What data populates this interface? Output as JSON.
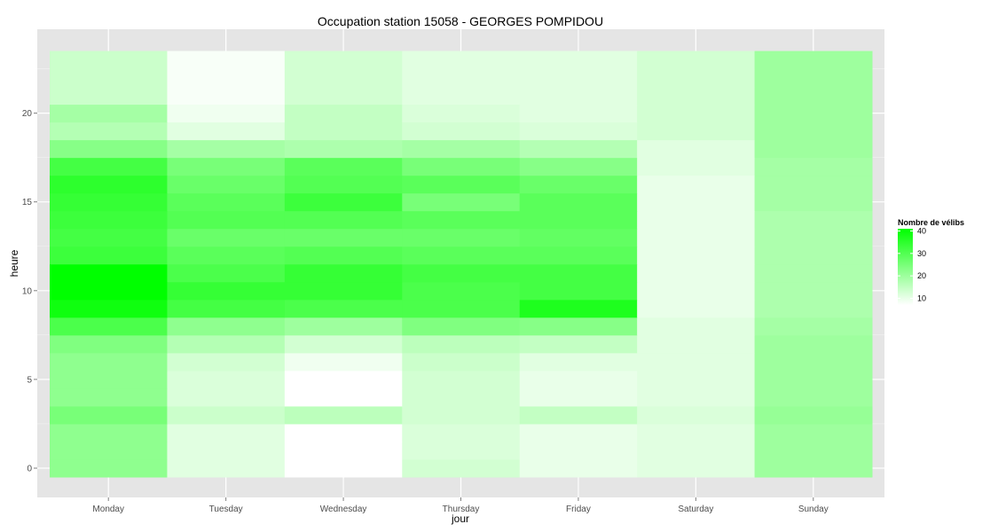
{
  "chart_data": {
    "type": "heatmap",
    "title": "Occupation station 15058 - GEORGES POMPIDOU",
    "xlabel": "jour",
    "ylabel": "heure",
    "x_categories": [
      "Monday",
      "Tuesday",
      "Wednesday",
      "Thursday",
      "Friday",
      "Saturday",
      "Sunday"
    ],
    "y_values": [
      0,
      1,
      2,
      3,
      4,
      5,
      6,
      7,
      8,
      9,
      10,
      11,
      12,
      13,
      14,
      15,
      16,
      17,
      18,
      19,
      20,
      21,
      22,
      23
    ],
    "y_ticks": [
      0,
      5,
      10,
      15,
      20
    ],
    "ylim": [
      -0.5,
      23.5
    ],
    "grid": true,
    "legend": {
      "title": "Nombre de vélibs",
      "ticks": [
        10,
        20,
        30,
        40
      ],
      "range": [
        7,
        41
      ],
      "low_color": "#ffffff",
      "high_color": "#00ff00",
      "position": "right"
    },
    "values": [
      [
        22,
        11,
        7,
        13,
        10,
        11,
        20
      ],
      [
        22,
        11,
        7,
        12,
        10,
        11,
        20
      ],
      [
        22,
        11,
        7,
        12,
        10,
        11,
        20
      ],
      [
        25,
        14,
        16,
        13,
        15,
        12,
        21
      ],
      [
        22,
        12,
        7,
        13,
        10,
        11,
        20
      ],
      [
        22,
        12,
        7,
        13,
        10,
        11,
        20
      ],
      [
        22,
        13,
        9,
        14,
        11,
        11,
        20
      ],
      [
        24,
        17,
        13,
        16,
        15,
        11,
        20
      ],
      [
        31,
        22,
        20,
        24,
        23,
        11,
        19
      ],
      [
        39,
        32,
        31,
        31,
        37,
        10,
        18
      ],
      [
        41,
        34,
        34,
        31,
        32,
        10,
        18
      ],
      [
        41,
        31,
        34,
        32,
        32,
        10,
        18
      ],
      [
        33,
        29,
        30,
        29,
        29,
        10,
        18
      ],
      [
        32,
        27,
        27,
        27,
        28,
        10,
        18
      ],
      [
        33,
        30,
        30,
        29,
        29,
        10,
        18
      ],
      [
        34,
        29,
        33,
        25,
        29,
        10,
        19
      ],
      [
        35,
        27,
        30,
        29,
        27,
        10,
        19
      ],
      [
        32,
        25,
        29,
        25,
        23,
        11,
        19
      ],
      [
        23,
        19,
        18,
        19,
        17,
        11,
        20
      ],
      [
        17,
        11,
        15,
        13,
        12,
        13,
        20
      ],
      [
        19,
        9,
        15,
        12,
        11,
        13,
        20
      ],
      [
        14,
        8,
        13,
        11,
        11,
        13,
        20
      ],
      [
        14,
        8,
        13,
        11,
        11,
        13,
        20
      ],
      [
        14,
        8,
        13,
        11,
        11,
        13,
        20
      ]
    ]
  }
}
